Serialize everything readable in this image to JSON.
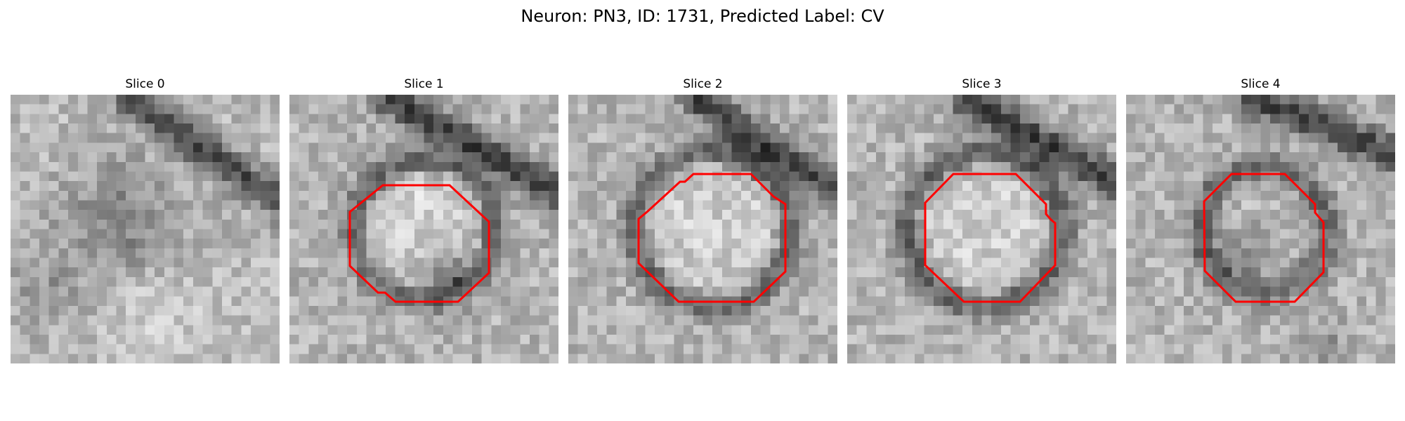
{
  "figure": {
    "title": "Neuron: PN3, ID: 1731, Predicted Label: CV"
  },
  "colors": {
    "contour": "#ff0000",
    "background": "#ffffff"
  },
  "panels": [
    {
      "title": "Slice 0",
      "has_contour": false
    },
    {
      "title": "Slice 1",
      "has_contour": true
    },
    {
      "title": "Slice 2",
      "has_contour": true
    },
    {
      "title": "Slice 3",
      "has_contour": true
    },
    {
      "title": "Slice 4",
      "has_contour": true
    }
  ]
}
